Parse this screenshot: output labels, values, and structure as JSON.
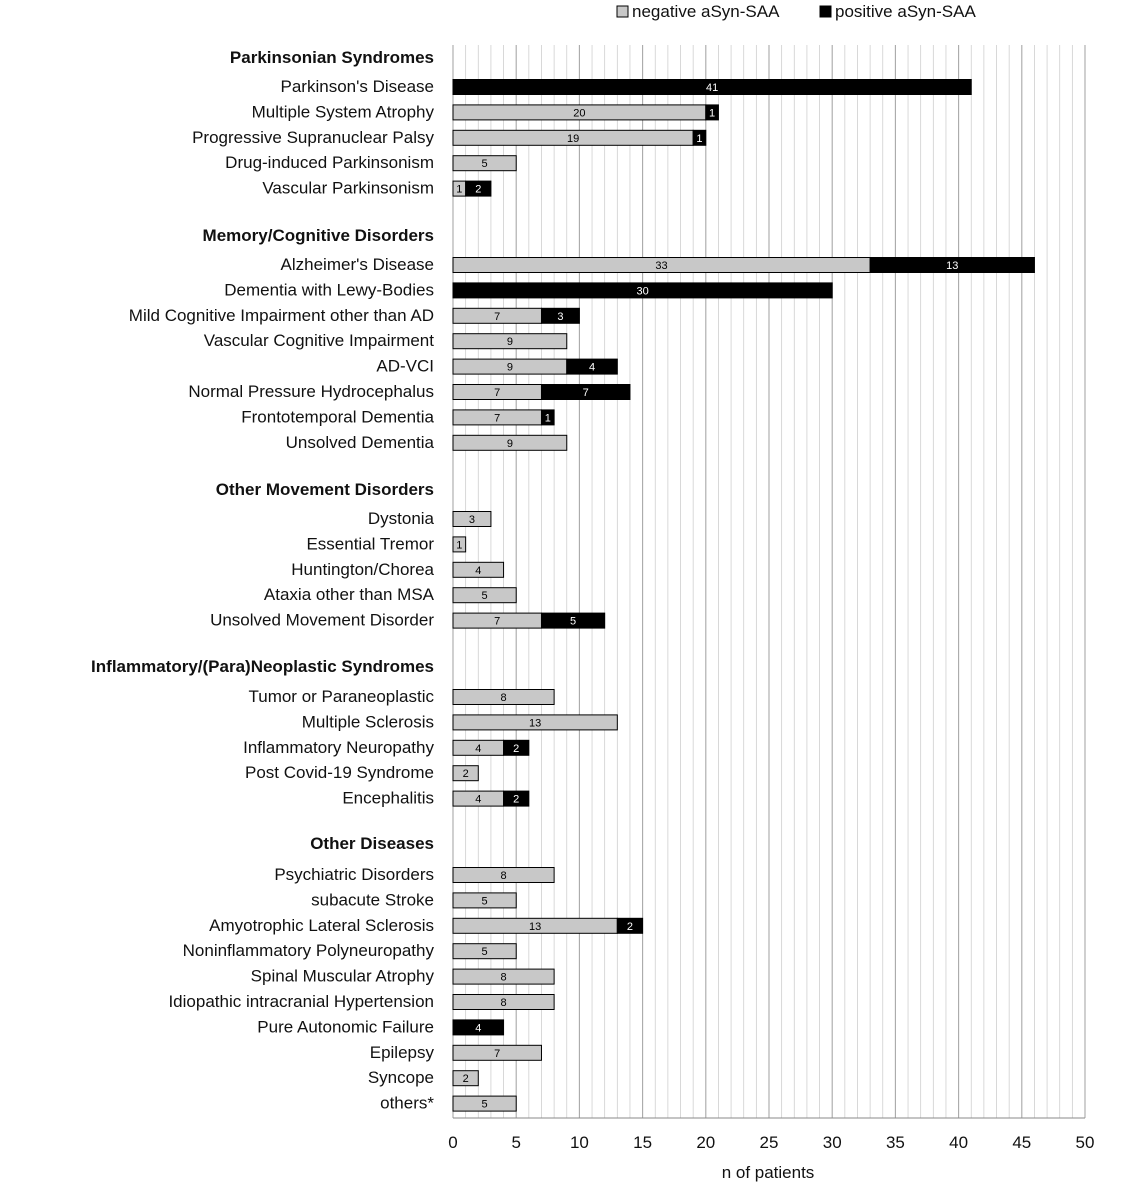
{
  "chart_data": {
    "type": "bar",
    "orientation": "horizontal",
    "stacked": true,
    "xlabel": "n of  patients",
    "xlim": [
      0,
      50
    ],
    "xticks": [
      0,
      5,
      10,
      15,
      20,
      25,
      30,
      35,
      40,
      45,
      50
    ],
    "grid": "vertical lines every 1 unit",
    "legend": {
      "placement": "top-right",
      "entries": [
        "negative aSyn-SAA",
        "positive aSyn-SAA"
      ]
    },
    "colors": {
      "negative": "#c8c8c8",
      "positive": "#000000"
    },
    "series": [
      {
        "name": "negative aSyn-SAA",
        "key": "negative"
      },
      {
        "name": "positive aSyn-SAA",
        "key": "positive"
      }
    ],
    "groups": [
      {
        "title": "Parkinsonian Syndromes",
        "items": [
          {
            "label": "Parkinson's Disease",
            "negative": 0,
            "positive": 41
          },
          {
            "label": "Multiple System Atrophy",
            "negative": 20,
            "positive": 1
          },
          {
            "label": "Progressive Supranuclear Palsy",
            "negative": 19,
            "positive": 1
          },
          {
            "label": "Drug-induced Parkinsonism",
            "negative": 5,
            "positive": 0
          },
          {
            "label": "Vascular Parkinsonism",
            "negative": 1,
            "positive": 2
          }
        ]
      },
      {
        "title": "Memory/Cognitive Disorders",
        "items": [
          {
            "label": "Alzheimer's Disease",
            "negative": 33,
            "positive": 13
          },
          {
            "label": "Dementia with Lewy-Bodies",
            "negative": 0,
            "positive": 30
          },
          {
            "label": "Mild Cognitive Impairment other than AD",
            "negative": 7,
            "positive": 3
          },
          {
            "label": "Vascular Cognitive Impairment",
            "negative": 9,
            "positive": 0
          },
          {
            "label": "AD-VCI",
            "negative": 9,
            "positive": 4
          },
          {
            "label": "Normal Pressure Hydrocephalus",
            "negative": 7,
            "positive": 7
          },
          {
            "label": "Frontotemporal Dementia",
            "negative": 7,
            "positive": 1
          },
          {
            "label": "Unsolved Dementia",
            "negative": 9,
            "positive": 0
          }
        ]
      },
      {
        "title": "Other Movement Disorders",
        "items": [
          {
            "label": "Dystonia",
            "negative": 3,
            "positive": 0
          },
          {
            "label": "Essential Tremor",
            "negative": 1,
            "positive": 0
          },
          {
            "label": "Huntington/Chorea",
            "negative": 4,
            "positive": 0
          },
          {
            "label": "Ataxia other than MSA",
            "negative": 5,
            "positive": 0
          },
          {
            "label": "Unsolved Movement Disorder",
            "negative": 7,
            "positive": 5
          }
        ]
      },
      {
        "title": "Inflammatory/(Para)Neoplastic Syndromes",
        "items": [
          {
            "label": "Tumor or Paraneoplastic",
            "negative": 8,
            "positive": 0
          },
          {
            "label": "Multiple Sclerosis",
            "negative": 13,
            "positive": 0
          },
          {
            "label": "Inflammatory Neuropathy",
            "negative": 4,
            "positive": 2
          },
          {
            "label": "Post Covid-19 Syndrome",
            "negative": 2,
            "positive": 0
          },
          {
            "label": "Encephalitis",
            "negative": 4,
            "positive": 2
          }
        ]
      },
      {
        "title": "Other Diseases",
        "items": [
          {
            "label": "Psychiatric Disorders",
            "negative": 8,
            "positive": 0
          },
          {
            "label": "subacute Stroke",
            "negative": 5,
            "positive": 0
          },
          {
            "label": "Amyotrophic Lateral Sclerosis",
            "negative": 13,
            "positive": 2
          },
          {
            "label": "Noninflammatory Polyneuropathy",
            "negative": 5,
            "positive": 0
          },
          {
            "label": "Spinal Muscular Atrophy",
            "negative": 8,
            "positive": 0
          },
          {
            "label": "Idiopathic intracranial Hypertension",
            "negative": 8,
            "positive": 0
          },
          {
            "label": "Pure Autonomic Failure",
            "negative": 0,
            "positive": 4
          },
          {
            "label": "Epilepsy",
            "negative": 7,
            "positive": 0
          },
          {
            "label": "Syncope",
            "negative": 2,
            "positive": 0
          },
          {
            "label": "others*",
            "negative": 5,
            "positive": 0
          }
        ]
      }
    ]
  }
}
